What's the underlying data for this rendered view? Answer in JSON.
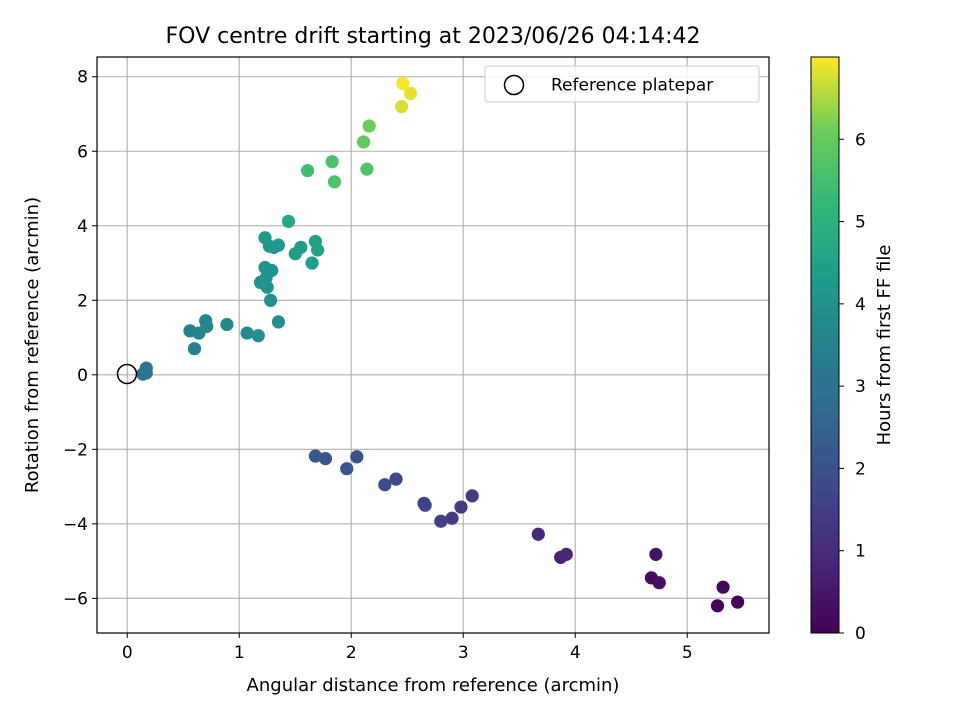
{
  "chart_data": {
    "type": "scatter",
    "title": "FOV centre drift starting at 2023/06/26 04:14:42",
    "xlabel": "Angular distance from reference (arcmin)",
    "ylabel": "Rotation from reference (arcmin)",
    "xlim": [
      -0.27,
      5.73
    ],
    "ylim": [
      -6.93,
      8.53
    ],
    "xticks": [
      0,
      1,
      2,
      3,
      4,
      5
    ],
    "yticks": [
      -6,
      -4,
      -2,
      0,
      2,
      4,
      6,
      8
    ],
    "grid": true,
    "legend": {
      "position": "top-right",
      "entries": [
        "Reference platepar"
      ]
    },
    "reference_point": {
      "x": 0,
      "y": 0
    },
    "colorbar": {
      "label": "Hours from first FF file",
      "range": [
        0,
        7
      ],
      "ticks": [
        0,
        1,
        2,
        3,
        4,
        5,
        6
      ],
      "colormap": "viridis"
    },
    "points": [
      {
        "x": 5.27,
        "y": -6.2,
        "c": 0.05
      },
      {
        "x": 5.45,
        "y": -6.1,
        "c": 0.1
      },
      {
        "x": 5.32,
        "y": -5.7,
        "c": 0.15
      },
      {
        "x": 4.68,
        "y": -5.45,
        "c": 0.25
      },
      {
        "x": 4.75,
        "y": -5.58,
        "c": 0.3
      },
      {
        "x": 4.72,
        "y": -4.82,
        "c": 0.4
      },
      {
        "x": 3.87,
        "y": -4.9,
        "c": 0.75
      },
      {
        "x": 3.92,
        "y": -4.82,
        "c": 0.8
      },
      {
        "x": 3.67,
        "y": -4.28,
        "c": 0.9
      },
      {
        "x": 3.08,
        "y": -3.25,
        "c": 1.35
      },
      {
        "x": 2.98,
        "y": -3.55,
        "c": 1.4
      },
      {
        "x": 2.9,
        "y": -3.85,
        "c": 1.45
      },
      {
        "x": 2.8,
        "y": -3.93,
        "c": 1.5
      },
      {
        "x": 2.66,
        "y": -3.5,
        "c": 1.6
      },
      {
        "x": 2.65,
        "y": -3.45,
        "c": 1.62
      },
      {
        "x": 2.4,
        "y": -2.8,
        "c": 1.75
      },
      {
        "x": 2.3,
        "y": -2.95,
        "c": 1.8
      },
      {
        "x": 2.05,
        "y": -2.2,
        "c": 2.0
      },
      {
        "x": 1.96,
        "y": -2.52,
        "c": 2.05
      },
      {
        "x": 1.77,
        "y": -2.25,
        "c": 2.1
      },
      {
        "x": 1.68,
        "y": -2.18,
        "c": 2.15
      },
      {
        "x": 0.14,
        "y": 0.02,
        "c": 3.0
      },
      {
        "x": 0.17,
        "y": 0.05,
        "c": 3.05
      },
      {
        "x": 0.17,
        "y": 0.18,
        "c": 3.1
      },
      {
        "x": 0.6,
        "y": 0.7,
        "c": 3.45
      },
      {
        "x": 0.56,
        "y": 1.18,
        "c": 3.5
      },
      {
        "x": 0.64,
        "y": 1.12,
        "c": 3.55
      },
      {
        "x": 0.7,
        "y": 1.45,
        "c": 3.6
      },
      {
        "x": 0.71,
        "y": 1.3,
        "c": 3.62
      },
      {
        "x": 0.89,
        "y": 1.35,
        "c": 3.7
      },
      {
        "x": 1.07,
        "y": 1.12,
        "c": 3.78
      },
      {
        "x": 1.17,
        "y": 1.05,
        "c": 3.82
      },
      {
        "x": 1.35,
        "y": 1.42,
        "c": 3.88
      },
      {
        "x": 1.28,
        "y": 2.0,
        "c": 3.95
      },
      {
        "x": 1.25,
        "y": 2.35,
        "c": 4.0
      },
      {
        "x": 1.19,
        "y": 2.48,
        "c": 4.02
      },
      {
        "x": 1.24,
        "y": 2.6,
        "c": 4.05
      },
      {
        "x": 1.23,
        "y": 2.88,
        "c": 4.08
      },
      {
        "x": 1.29,
        "y": 2.8,
        "c": 4.1
      },
      {
        "x": 1.27,
        "y": 3.45,
        "c": 4.12
      },
      {
        "x": 1.31,
        "y": 3.42,
        "c": 4.15
      },
      {
        "x": 1.35,
        "y": 3.48,
        "c": 4.18
      },
      {
        "x": 1.23,
        "y": 3.68,
        "c": 4.2
      },
      {
        "x": 1.5,
        "y": 3.25,
        "c": 4.3
      },
      {
        "x": 1.55,
        "y": 3.42,
        "c": 4.35
      },
      {
        "x": 1.65,
        "y": 3.0,
        "c": 4.4
      },
      {
        "x": 1.68,
        "y": 3.58,
        "c": 4.45
      },
      {
        "x": 1.7,
        "y": 3.35,
        "c": 4.48
      },
      {
        "x": 1.44,
        "y": 4.12,
        "c": 4.7
      },
      {
        "x": 1.61,
        "y": 5.48,
        "c": 5.45
      },
      {
        "x": 1.83,
        "y": 5.72,
        "c": 5.6
      },
      {
        "x": 1.85,
        "y": 5.18,
        "c": 5.65
      },
      {
        "x": 2.14,
        "y": 5.52,
        "c": 5.7
      },
      {
        "x": 2.11,
        "y": 6.25,
        "c": 5.95
      },
      {
        "x": 2.16,
        "y": 6.68,
        "c": 6.1
      },
      {
        "x": 2.45,
        "y": 7.2,
        "c": 6.75
      },
      {
        "x": 2.53,
        "y": 7.55,
        "c": 6.85
      },
      {
        "x": 2.46,
        "y": 7.82,
        "c": 6.95
      }
    ]
  }
}
